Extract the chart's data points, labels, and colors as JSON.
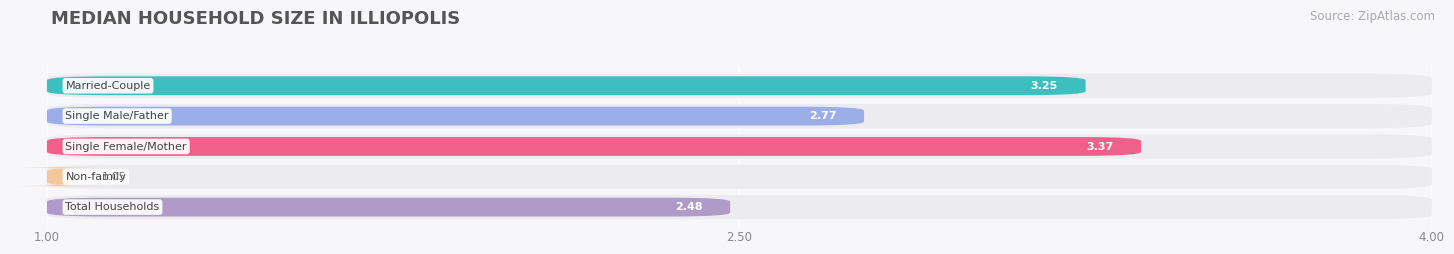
{
  "title": "MEDIAN HOUSEHOLD SIZE IN ILLIOPOLIS",
  "source": "Source: ZipAtlas.com",
  "categories": [
    "Married-Couple",
    "Single Male/Father",
    "Single Female/Mother",
    "Non-family",
    "Total Households"
  ],
  "values": [
    3.25,
    2.77,
    3.37,
    1.05,
    2.48
  ],
  "bar_colors": [
    "#3dbfbf",
    "#9baee8",
    "#f0608a",
    "#f5c89a",
    "#b09ac8"
  ],
  "xlim_min": 0.0,
  "xlim_max": 4.0,
  "data_min": 1.0,
  "data_max": 4.0,
  "xticks": [
    1.0,
    2.5,
    4.0
  ],
  "xtick_labels": [
    "1.00",
    "2.50",
    "4.00"
  ],
  "bar_height": 0.62,
  "row_bg_color": "#ebebf0",
  "fig_bg_color": "#f7f7fa",
  "title_fontsize": 13,
  "source_fontsize": 8.5,
  "label_fontsize": 8,
  "value_fontsize": 8,
  "value_inside_color": "white",
  "value_outside_color": "#777777"
}
